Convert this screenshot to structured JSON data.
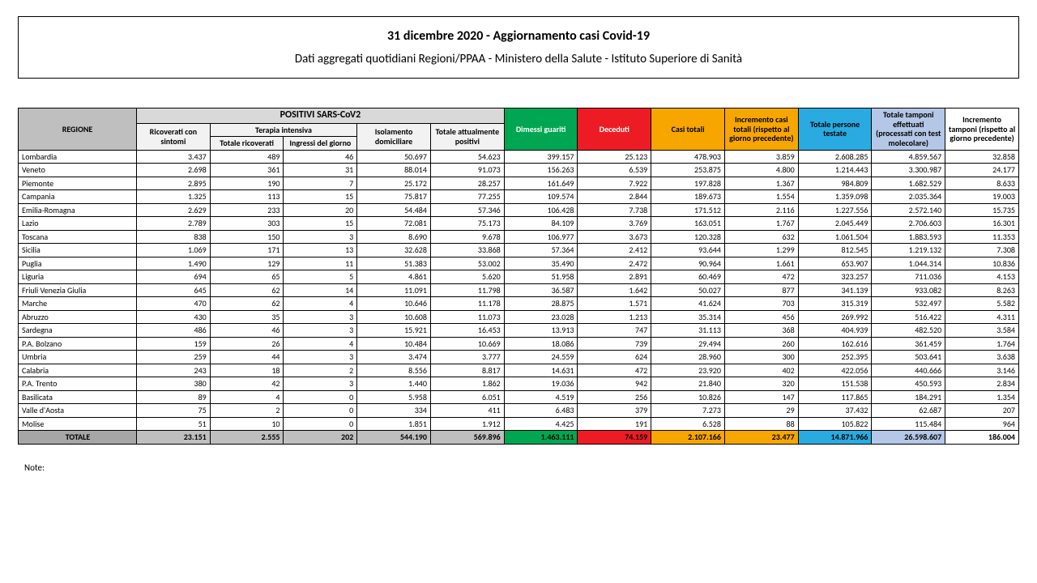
{
  "header": {
    "title": "31 dicembre 2020 - Aggiornamento casi Covid-19",
    "subtitle": "Dati aggregati quotidiani Regioni/PPAA - Ministero della Salute - Istituto Superiore di Sanità"
  },
  "columns": {
    "regione": "REGIONE",
    "positivi_group": "POSITIVI SARS-CoV2",
    "ricoverati": "Ricoverati con sintomi",
    "terapia_group": "Terapia intensiva",
    "terapia_tot": "Totale ricoverati",
    "terapia_ing": "Ingressi del giorno",
    "isolamento": "Isolamento domiciliare",
    "tot_pos": "Totale attualmente positivi",
    "dimessi": "Dimessi guariti",
    "deceduti": "Deceduti",
    "casi": "Casi totali",
    "incr_casi": "Incremento casi totali (rispetto al giorno precedente)",
    "persone": "Totale persone testate",
    "tamponi": "Totale tamponi effettuati (processati con test molecolare)",
    "incr_tamp": "Incremento tamponi (rispetto al giorno precedente)"
  },
  "rows": [
    {
      "r": "Lombardia",
      "v": [
        "3.437",
        "489",
        "46",
        "50.697",
        "54.623",
        "399.157",
        "25.123",
        "478.903",
        "3.859",
        "2.608.285",
        "4.859.567",
        "32.858"
      ]
    },
    {
      "r": "Veneto",
      "v": [
        "2.698",
        "361",
        "31",
        "88.014",
        "91.073",
        "156.263",
        "6.539",
        "253.875",
        "4.800",
        "1.214.443",
        "3.300.987",
        "24.177"
      ]
    },
    {
      "r": "Piemonte",
      "v": [
        "2.895",
        "190",
        "7",
        "25.172",
        "28.257",
        "161.649",
        "7.922",
        "197.828",
        "1.367",
        "984.809",
        "1.682.529",
        "8.633"
      ]
    },
    {
      "r": "Campania",
      "v": [
        "1.325",
        "113",
        "15",
        "75.817",
        "77.255",
        "109.574",
        "2.844",
        "189.673",
        "1.554",
        "1.359.098",
        "2.035.364",
        "19.003"
      ]
    },
    {
      "r": "Emilia-Romagna",
      "v": [
        "2.629",
        "233",
        "20",
        "54.484",
        "57.346",
        "106.428",
        "7.738",
        "171.512",
        "2.116",
        "1.227.556",
        "2.572.140",
        "15.735"
      ]
    },
    {
      "r": "Lazio",
      "v": [
        "2.789",
        "303",
        "15",
        "72.081",
        "75.173",
        "84.109",
        "3.769",
        "163.051",
        "1.767",
        "2.045.449",
        "2.706.603",
        "16.301"
      ]
    },
    {
      "r": "Toscana",
      "v": [
        "838",
        "150",
        "3",
        "8.690",
        "9.678",
        "106.977",
        "3.673",
        "120.328",
        "632",
        "1.061.504",
        "1.883.593",
        "11.353"
      ]
    },
    {
      "r": "Sicilia",
      "v": [
        "1.069",
        "171",
        "13",
        "32.628",
        "33.868",
        "57.364",
        "2.412",
        "93.644",
        "1.299",
        "812.545",
        "1.219.132",
        "7.308"
      ]
    },
    {
      "r": "Puglia",
      "v": [
        "1.490",
        "129",
        "11",
        "51.383",
        "53.002",
        "35.490",
        "2.472",
        "90.964",
        "1.661",
        "653.907",
        "1.044.314",
        "10.836"
      ]
    },
    {
      "r": "Liguria",
      "v": [
        "694",
        "65",
        "5",
        "4.861",
        "5.620",
        "51.958",
        "2.891",
        "60.469",
        "472",
        "323.257",
        "711.036",
        "4.153"
      ]
    },
    {
      "r": "Friuli Venezia Giulia",
      "v": [
        "645",
        "62",
        "14",
        "11.091",
        "11.798",
        "36.587",
        "1.642",
        "50.027",
        "877",
        "341.139",
        "933.082",
        "8.263"
      ]
    },
    {
      "r": "Marche",
      "v": [
        "470",
        "62",
        "4",
        "10.646",
        "11.178",
        "28.875",
        "1.571",
        "41.624",
        "703",
        "315.319",
        "532.497",
        "5.582"
      ]
    },
    {
      "r": "Abruzzo",
      "v": [
        "430",
        "35",
        "3",
        "10.608",
        "11.073",
        "23.028",
        "1.213",
        "35.314",
        "456",
        "269.992",
        "516.422",
        "4.311"
      ]
    },
    {
      "r": "Sardegna",
      "v": [
        "486",
        "46",
        "3",
        "15.921",
        "16.453",
        "13.913",
        "747",
        "31.113",
        "368",
        "404.939",
        "482.520",
        "3.584"
      ]
    },
    {
      "r": "P.A. Bolzano",
      "v": [
        "159",
        "26",
        "4",
        "10.484",
        "10.669",
        "18.086",
        "739",
        "29.494",
        "260",
        "162.616",
        "361.459",
        "1.764"
      ]
    },
    {
      "r": "Umbria",
      "v": [
        "259",
        "44",
        "3",
        "3.474",
        "3.777",
        "24.559",
        "624",
        "28.960",
        "300",
        "252.395",
        "503.641",
        "3.638"
      ]
    },
    {
      "r": "Calabria",
      "v": [
        "243",
        "18",
        "2",
        "8.556",
        "8.817",
        "14.631",
        "472",
        "23.920",
        "402",
        "422.056",
        "440.666",
        "3.146"
      ]
    },
    {
      "r": "P.A. Trento",
      "v": [
        "380",
        "42",
        "3",
        "1.440",
        "1.862",
        "19.036",
        "942",
        "21.840",
        "320",
        "151.538",
        "450.593",
        "2.834"
      ]
    },
    {
      "r": "Basilicata",
      "v": [
        "89",
        "4",
        "0",
        "5.958",
        "6.051",
        "4.519",
        "256",
        "10.826",
        "147",
        "117.865",
        "184.291",
        "1.354"
      ]
    },
    {
      "r": "Valle d'Aosta",
      "v": [
        "75",
        "2",
        "0",
        "334",
        "411",
        "6.483",
        "379",
        "7.273",
        "29",
        "37.432",
        "62.687",
        "207"
      ]
    },
    {
      "r": "Molise",
      "v": [
        "51",
        "10",
        "0",
        "1.851",
        "1.912",
        "4.425",
        "191",
        "6.528",
        "88",
        "105.822",
        "115.484",
        "964"
      ]
    }
  ],
  "total": {
    "r": "TOTALE",
    "v": [
      "23.151",
      "2.555",
      "202",
      "544.190",
      "569.896",
      "1.463.111",
      "74.159",
      "2.107.166",
      "23.477",
      "14.871.966",
      "26.598.607",
      "186.004"
    ]
  },
  "note": "Note:",
  "colors": {
    "green": "#00a651",
    "red": "#ed1c24",
    "orange": "#f7a600",
    "blue": "#29abe2",
    "lavender": "#b4c7e7",
    "grey_dark": "#a6a6a6",
    "grey_mid": "#bfbfbf",
    "grey_light": "#d9d9d9",
    "grey_vlight": "#f2f2f2"
  }
}
